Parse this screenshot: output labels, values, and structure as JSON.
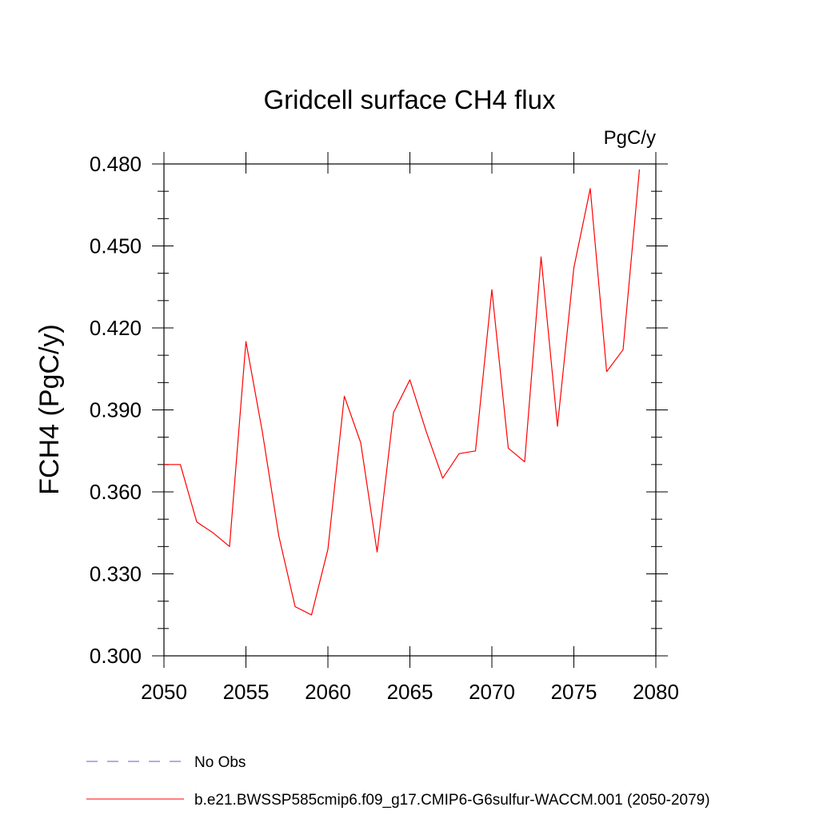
{
  "chart_data": {
    "type": "line",
    "title": "Gridcell surface CH4 flux",
    "units_label": "PgC/y",
    "ylabel": "FCH4  (PgC/y)",
    "xlabel": "",
    "xlim": [
      2050,
      2080
    ],
    "ylim": [
      0.3,
      0.48
    ],
    "x_ticks": [
      2050,
      2055,
      2060,
      2065,
      2070,
      2075,
      2080
    ],
    "x_tick_labels": [
      "2050",
      "2055",
      "2060",
      "2065",
      "2070",
      "2075",
      "2080"
    ],
    "y_ticks": [
      0.3,
      0.33,
      0.36,
      0.39,
      0.42,
      0.45,
      0.48
    ],
    "y_tick_labels": [
      "0.300",
      "0.330",
      "0.360",
      "0.390",
      "0.420",
      "0.450",
      "0.480"
    ],
    "grid": false,
    "legend_position": "bottom",
    "series": [
      {
        "name": "b.e21.BWSSP585cmip6.f09_g17.CMIP6-G6sulfur-WACCM.001 (2050-2079)",
        "color": "#ff0000",
        "style": "solid",
        "x": [
          2050,
          2051,
          2052,
          2053,
          2054,
          2055,
          2056,
          2057,
          2058,
          2059,
          2060,
          2061,
          2062,
          2063,
          2064,
          2065,
          2066,
          2067,
          2068,
          2069,
          2070,
          2071,
          2072,
          2073,
          2074,
          2075,
          2076,
          2077,
          2078,
          2079
        ],
        "y": [
          0.37,
          0.37,
          0.349,
          0.345,
          0.34,
          0.415,
          0.382,
          0.344,
          0.318,
          0.315,
          0.339,
          0.395,
          0.378,
          0.338,
          0.389,
          0.401,
          0.382,
          0.365,
          0.374,
          0.375,
          0.434,
          0.376,
          0.371,
          0.446,
          0.384,
          0.442,
          0.471,
          0.404,
          0.412,
          0.478
        ]
      }
    ],
    "legend": [
      {
        "label": "No Obs",
        "color": "#6a5acd",
        "style": "dashed"
      },
      {
        "label": "b.e21.BWSSP585cmip6.f09_g17.CMIP6-G6sulfur-WACCM.001 (2050-2079)",
        "color": "#ff0000",
        "style": "solid"
      }
    ]
  }
}
